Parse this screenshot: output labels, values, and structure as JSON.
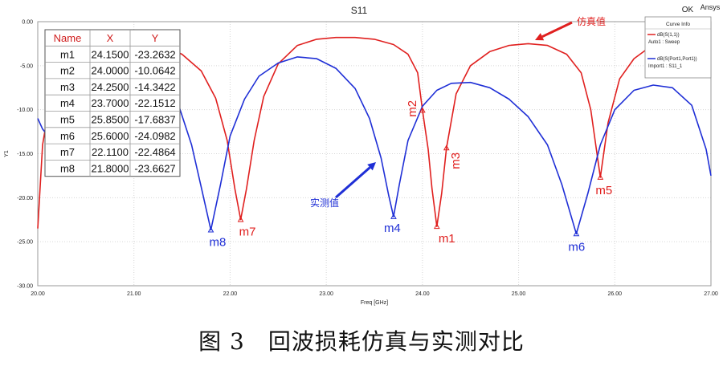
{
  "chart_data": {
    "type": "line",
    "title": "S11",
    "corner_labels": {
      "ok": "OK",
      "brand": "Ansys"
    },
    "xlabel": "Freq [GHz]",
    "ylabel": "Y1",
    "xlim": [
      20.0,
      27.0
    ],
    "ylim": [
      -30.0,
      0.0
    ],
    "x_ticks": [
      "20.00",
      "21.00",
      "22.00",
      "23.00",
      "24.00",
      "25.00",
      "26.00",
      "27.00"
    ],
    "y_ticks": [
      "0.00",
      "-5.00",
      "-10.00",
      "-15.00",
      "-20.00",
      "-25.00",
      "-30.00"
    ],
    "grid": true,
    "legend": {
      "title": "Curve Info",
      "position": "top-right",
      "entries": [
        {
          "name": "dB(S(1,1))",
          "sub": "Auto1 : Sweep",
          "color": "#e0201f"
        },
        {
          "name": "dB(S(Port1,Port1))",
          "sub": "Import1 : S11_1",
          "color": "#1f2fd6"
        }
      ]
    },
    "series": [
      {
        "name": "dB(S(1,1))",
        "color": "#e0201f",
        "points": [
          [
            20.0,
            -23.5
          ],
          [
            20.05,
            -14
          ],
          [
            20.15,
            -7.5
          ],
          [
            20.3,
            -4.4
          ],
          [
            20.5,
            -2.6
          ],
          [
            20.7,
            -2.0
          ],
          [
            20.9,
            -1.9
          ],
          [
            21.1,
            -2.1
          ],
          [
            21.3,
            -2.7
          ],
          [
            21.5,
            -3.7
          ],
          [
            21.7,
            -5.6
          ],
          [
            21.85,
            -8.7
          ],
          [
            21.97,
            -13.5
          ],
          [
            22.05,
            -19.0
          ],
          [
            22.11,
            -22.49
          ],
          [
            22.17,
            -19.0
          ],
          [
            22.25,
            -13.5
          ],
          [
            22.35,
            -8.5
          ],
          [
            22.5,
            -4.8
          ],
          [
            22.7,
            -2.7
          ],
          [
            22.9,
            -2.0
          ],
          [
            23.1,
            -1.8
          ],
          [
            23.3,
            -1.8
          ],
          [
            23.5,
            -2.0
          ],
          [
            23.7,
            -2.6
          ],
          [
            23.85,
            -3.7
          ],
          [
            23.95,
            -5.8
          ],
          [
            24.0,
            -10.06
          ],
          [
            24.06,
            -14.5
          ],
          [
            24.1,
            -19.0
          ],
          [
            24.15,
            -23.26
          ],
          [
            24.2,
            -19.5
          ],
          [
            24.25,
            -14.34
          ],
          [
            24.35,
            -8.2
          ],
          [
            24.5,
            -5.0
          ],
          [
            24.7,
            -3.4
          ],
          [
            24.9,
            -2.7
          ],
          [
            25.1,
            -2.5
          ],
          [
            25.3,
            -2.7
          ],
          [
            25.5,
            -3.7
          ],
          [
            25.65,
            -5.8
          ],
          [
            25.75,
            -10.0
          ],
          [
            25.85,
            -17.68
          ],
          [
            25.93,
            -11.5
          ],
          [
            26.05,
            -6.5
          ],
          [
            26.2,
            -4.2
          ],
          [
            26.35,
            -3.0
          ],
          [
            26.5,
            -2.4
          ],
          [
            26.6,
            -2.2
          ]
        ]
      },
      {
        "name": "dB(S(Port1,Port1))",
        "color": "#1f2fd6",
        "points": [
          [
            20.0,
            -11.0
          ],
          [
            20.05,
            -12.2
          ],
          [
            20.08,
            -12.6
          ],
          [
            21.45,
            -9.0
          ],
          [
            21.6,
            -14.0
          ],
          [
            21.7,
            -18.8
          ],
          [
            21.8,
            -23.66
          ],
          [
            21.9,
            -18.5
          ],
          [
            22.0,
            -13.0
          ],
          [
            22.15,
            -8.8
          ],
          [
            22.3,
            -6.2
          ],
          [
            22.5,
            -4.7
          ],
          [
            22.7,
            -4.0
          ],
          [
            22.9,
            -4.2
          ],
          [
            23.1,
            -5.3
          ],
          [
            23.3,
            -7.6
          ],
          [
            23.45,
            -11.0
          ],
          [
            23.57,
            -15.5
          ],
          [
            23.65,
            -19.8
          ],
          [
            23.7,
            -22.15
          ],
          [
            23.76,
            -18.5
          ],
          [
            23.85,
            -13.5
          ],
          [
            24.0,
            -9.6
          ],
          [
            24.15,
            -7.8
          ],
          [
            24.3,
            -7.0
          ],
          [
            24.5,
            -6.9
          ],
          [
            24.7,
            -7.5
          ],
          [
            24.9,
            -8.8
          ],
          [
            25.1,
            -10.8
          ],
          [
            25.3,
            -14.0
          ],
          [
            25.45,
            -18.5
          ],
          [
            25.6,
            -24.1
          ],
          [
            25.72,
            -19.5
          ],
          [
            25.85,
            -14.0
          ],
          [
            26.0,
            -10.0
          ],
          [
            26.2,
            -7.8
          ],
          [
            26.4,
            -7.2
          ],
          [
            26.6,
            -7.5
          ],
          [
            26.8,
            -9.5
          ],
          [
            26.95,
            -14.5
          ],
          [
            27.0,
            -17.5
          ]
        ]
      }
    ],
    "markers": [
      {
        "label": "m1",
        "x": 24.15,
        "y": -23.2632,
        "series": 0
      },
      {
        "label": "m2",
        "x": 24.0,
        "y": -10.0642,
        "series": 0
      },
      {
        "label": "m3",
        "x": 24.25,
        "y": -14.3422,
        "series": 0
      },
      {
        "label": "m4",
        "x": 23.7,
        "y": -22.1512,
        "series": 1
      },
      {
        "label": "m5",
        "x": 25.85,
        "y": -17.6837,
        "series": 0
      },
      {
        "label": "m6",
        "x": 25.6,
        "y": -24.0982,
        "series": 1
      },
      {
        "label": "m7",
        "x": 22.11,
        "y": -22.4864,
        "series": 0
      },
      {
        "label": "m8",
        "x": 21.8,
        "y": -23.6627,
        "series": 1
      }
    ],
    "marker_table": {
      "headers": [
        "Name",
        "X",
        "Y"
      ],
      "rows": [
        [
          "m1",
          "24.1500",
          "-23.2632"
        ],
        [
          "m2",
          "24.0000",
          "-10.0642"
        ],
        [
          "m3",
          "24.2500",
          "-14.3422"
        ],
        [
          "m4",
          "23.7000",
          "-22.1512"
        ],
        [
          "m5",
          "25.8500",
          "-17.6837"
        ],
        [
          "m6",
          "25.6000",
          "-24.0982"
        ],
        [
          "m7",
          "22.1100",
          "-22.4864"
        ],
        [
          "m8",
          "21.8000",
          "-23.6627"
        ]
      ]
    },
    "annotations": [
      {
        "text": "仿真值",
        "color": "#e0201f",
        "series": 0
      },
      {
        "text": "实测值",
        "color": "#1f2fd6",
        "series": 1
      }
    ]
  },
  "caption": "图 3　回波损耗仿真与实测对比"
}
